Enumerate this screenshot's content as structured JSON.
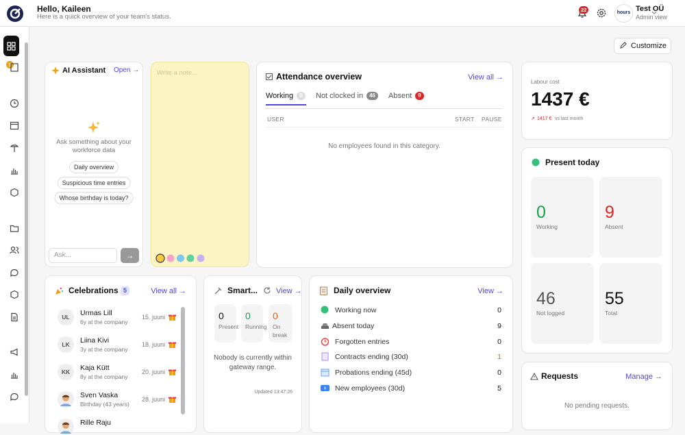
{
  "header": {
    "greeting": "Hello, Kaileen",
    "subtitle": "Here is a quick overview of your team's status.",
    "notifications": 22,
    "logo": "hours",
    "company": "Test OÜ",
    "role": "Admin view"
  },
  "sidebar": {
    "badge": 3
  },
  "customize": "Customize",
  "ai_assistant": {
    "title": "AI Assistant",
    "open": "Open →",
    "prompt": "Ask something about your workforce data",
    "suggestions": [
      "Daily overview",
      "Suspicious time entries",
      "Whose birthday is today?"
    ],
    "placeholder": "Ask...",
    "send": "→"
  },
  "note": {
    "placeholder": "Write a note..."
  },
  "attendance": {
    "title": "Attendance overview",
    "view_all": "View all →",
    "tabs": [
      {
        "label": "Working",
        "count": 0
      },
      {
        "label": "Not clocked in",
        "count": 46
      },
      {
        "label": "Absent",
        "count": 9
      }
    ],
    "columns": [
      "USER",
      "START",
      "PAUSE"
    ],
    "empty": "No employees found in this category."
  },
  "labour": {
    "label": "Labour cost",
    "value": "1437 €",
    "change": "1417 €",
    "comparison": "vs last month"
  },
  "present_today": {
    "title": "Present today",
    "stats": [
      {
        "value": 0,
        "label": "Working"
      },
      {
        "value": 9,
        "label": "Absent"
      },
      {
        "value": 46,
        "label": "Not logged"
      },
      {
        "value": 55,
        "label": "Total"
      }
    ]
  },
  "celebrations": {
    "title": "Celebrations",
    "count": 5,
    "view_all": "View all →",
    "items": [
      {
        "initials": "UL",
        "name": "Urmas Lill",
        "detail": "6y at the company",
        "date": "15. juuni"
      },
      {
        "initials": "LK",
        "name": "Liina Kivi",
        "detail": "3y at the company",
        "date": "18. juuni"
      },
      {
        "initials": "KK",
        "name": "Kaja Kütt",
        "detail": "8y at the company",
        "date": "20. juuni"
      },
      {
        "name": "Sven Vaska",
        "detail": "Birthday (43 years)",
        "date": "28. juuni"
      },
      {
        "name": "Rille Raju"
      }
    ]
  },
  "smart": {
    "title": "Smart...",
    "view": "View →",
    "stats": [
      {
        "value": 0,
        "label": "Present"
      },
      {
        "value": 0,
        "label": "Running"
      },
      {
        "value": 0,
        "label": "On break"
      }
    ],
    "message": "Nobody is currently within gateway range.",
    "updated": "Updated 13:47:26"
  },
  "daily_overview": {
    "title": "Daily overview",
    "view": "View →",
    "items": [
      {
        "label": "Working now",
        "value": 0
      },
      {
        "label": "Absent today",
        "value": 9
      },
      {
        "label": "Forgotten entries",
        "value": 0
      },
      {
        "label": "Contracts ending (30d)",
        "value": 1
      },
      {
        "label": "Probations ending (45d)",
        "value": 0
      },
      {
        "label": "New employees (30d)",
        "value": 5
      }
    ]
  },
  "requests": {
    "title": "Requests",
    "manage": "Manage →",
    "empty": "No pending requests."
  }
}
